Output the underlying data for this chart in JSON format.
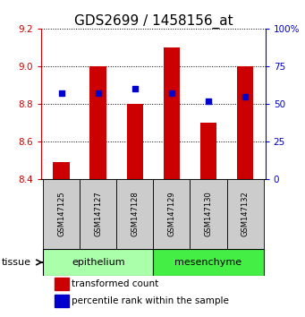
{
  "title": "GDS2699 / 1458156_at",
  "samples": [
    "GSM147125",
    "GSM147127",
    "GSM147128",
    "GSM147129",
    "GSM147130",
    "GSM147132"
  ],
  "bar_values": [
    8.49,
    9.0,
    8.8,
    9.1,
    8.7,
    9.0
  ],
  "bar_base": 8.4,
  "percentile_values": [
    57,
    57,
    60,
    57,
    52,
    55
  ],
  "ylim_left": [
    8.4,
    9.2
  ],
  "ylim_right": [
    0,
    100
  ],
  "yticks_left": [
    8.4,
    8.6,
    8.8,
    9.0,
    9.2
  ],
  "yticks_right": [
    0,
    25,
    50,
    75,
    100
  ],
  "bar_color": "#cc0000",
  "dot_color": "#0000cc",
  "bar_width": 0.45,
  "groups": [
    {
      "label": "epithelium",
      "indices": [
        0,
        1,
        2
      ],
      "color": "#aaffaa"
    },
    {
      "label": "mesenchyme",
      "indices": [
        3,
        4,
        5
      ],
      "color": "#44ee44"
    }
  ],
  "tissue_label": "tissue",
  "legend_items": [
    {
      "label": "transformed count",
      "color": "#cc0000"
    },
    {
      "label": "percentile rank within the sample",
      "color": "#0000cc"
    }
  ],
  "sample_box_color": "#cccccc",
  "title_fontsize": 11,
  "tick_fontsize": 7.5,
  "legend_fontsize": 7.5,
  "axis_label_fontsize": 7.5
}
